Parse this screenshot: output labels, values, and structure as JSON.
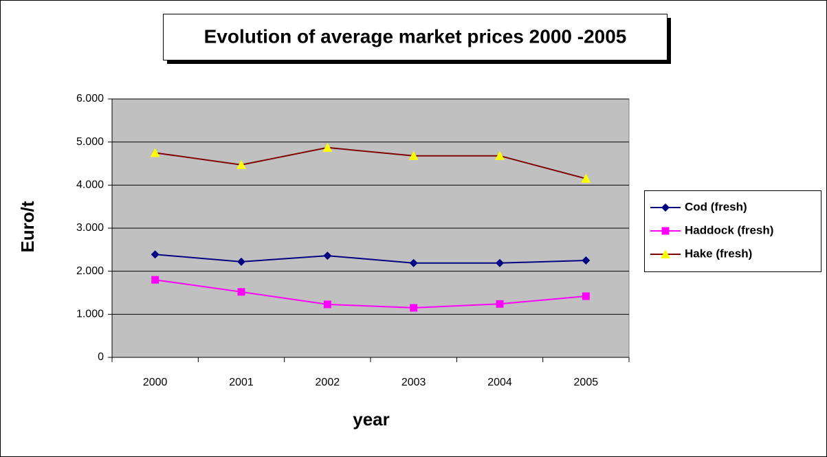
{
  "chart_data": {
    "type": "line",
    "title": "Evolution of average market prices 2000 -2005",
    "x_label": "year",
    "y_label": "Euro/t",
    "categories": [
      "2000",
      "2001",
      "2002",
      "2003",
      "2004",
      "2005"
    ],
    "series": [
      {
        "name": "Cod (fresh)",
        "color": "#000080",
        "marker": "diamond",
        "marker_color": "#000080",
        "values": [
          2390,
          2220,
          2360,
          2190,
          2190,
          2250
        ]
      },
      {
        "name": "Haddock (fresh)",
        "color": "#FF00FF",
        "marker": "square",
        "marker_color": "#FF00FF",
        "values": [
          1800,
          1520,
          1230,
          1150,
          1240,
          1420
        ]
      },
      {
        "name": "Hake (fresh)",
        "color": "#800000",
        "marker": "triangle",
        "marker_color": "#FFFF00",
        "values": [
          4750,
          4470,
          4870,
          4680,
          4680,
          4150
        ]
      }
    ],
    "ylim": [
      0,
      6000
    ],
    "yticks": [
      0,
      {
        "value": 1000,
        "label": "1.000"
      },
      {
        "value": 2000,
        "label": "2.000"
      },
      {
        "value": 3000,
        "label": "3.000"
      },
      {
        "value": 4000,
        "label": "4.000"
      },
      {
        "value": 5000,
        "label": "5.000"
      },
      {
        "value": 6000,
        "label": "6.000"
      }
    ],
    "grid": true,
    "plot_background": "#C0C0C0",
    "legend": "right"
  }
}
